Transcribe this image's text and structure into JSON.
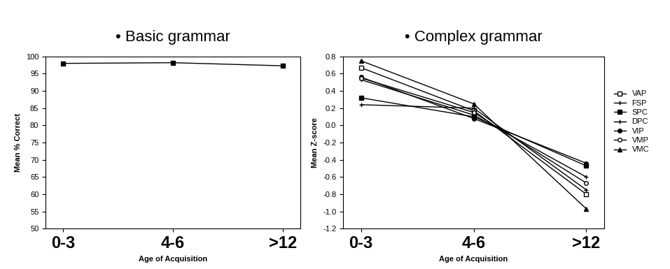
{
  "chart_data": [
    {
      "type": "line",
      "title": "• Basic grammar",
      "x_label": "Age of Acquisition",
      "y_label": "Mean % Correct",
      "categories": [
        "0-3",
        "4-6",
        ">12"
      ],
      "series": [
        {
          "name": "Basic grammar",
          "color": "#000000",
          "marker": "square",
          "values": [
            98.0,
            98.2,
            97.3
          ]
        }
      ],
      "ylim": [
        50,
        100
      ],
      "yticks": [
        50,
        55,
        60,
        65,
        70,
        75,
        80,
        85,
        90,
        95,
        100
      ]
    },
    {
      "type": "line",
      "title": "• Complex grammar",
      "x_label": "Age of Acquisition",
      "y_label": "Mean Z-score",
      "categories": [
        "0-3",
        "4-6",
        ">12"
      ],
      "series": [
        {
          "name": "VAP",
          "color": "#000000",
          "marker": "open_square",
          "values": [
            0.67,
            0.17,
            -0.8
          ]
        },
        {
          "name": "FSP",
          "color": "#000000",
          "marker": "plus",
          "values": [
            0.53,
            0.12,
            -0.6
          ]
        },
        {
          "name": "SPC",
          "color": "#000000",
          "marker": "square",
          "values": [
            0.32,
            0.1,
            -0.47
          ]
        },
        {
          "name": "DPC",
          "color": "#000000",
          "marker": "plus",
          "values": [
            0.24,
            0.2,
            -0.75
          ]
        },
        {
          "name": "VIP",
          "color": "#000000",
          "marker": "circle",
          "values": [
            0.56,
            0.08,
            -0.44
          ]
        },
        {
          "name": "VMP",
          "color": "#000000",
          "marker": "open_circle",
          "values": [
            0.55,
            0.15,
            -0.67
          ]
        },
        {
          "name": "VMC",
          "color": "#000000",
          "marker": "triangle",
          "values": [
            0.75,
            0.25,
            -0.97
          ]
        }
      ],
      "ylim": [
        -1.2,
        0.8
      ],
      "yticks": [
        -1.2,
        -1.0,
        -0.8,
        -0.6,
        -0.4,
        -0.2,
        0.0,
        0.2,
        0.4,
        0.6,
        0.8
      ],
      "legend": "right"
    }
  ]
}
